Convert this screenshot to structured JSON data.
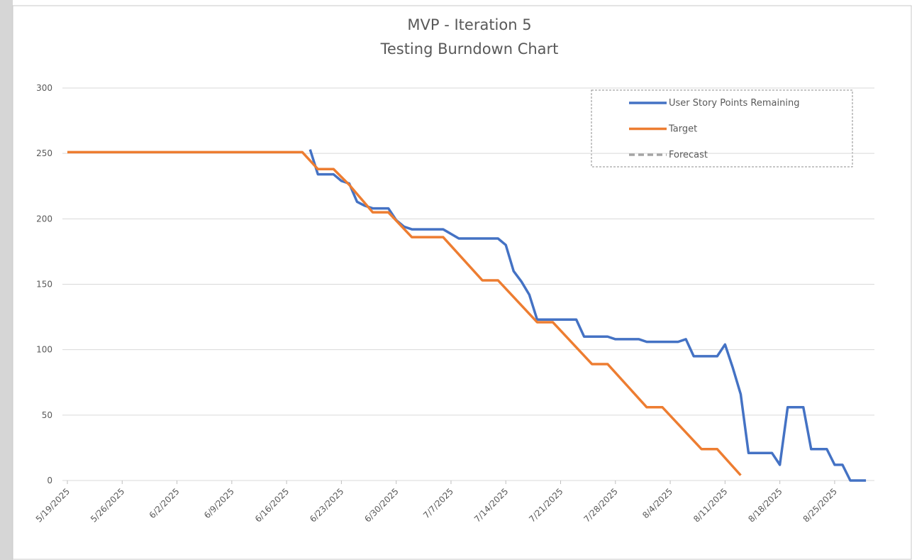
{
  "chart_data": {
    "type": "line",
    "title": "MVP - Iteration 5",
    "subtitle": "Testing Burndown Chart",
    "ylim": [
      0,
      300
    ],
    "yticks": [
      0,
      50,
      100,
      150,
      200,
      250,
      300
    ],
    "xlim": [
      "5/19/2025",
      "8/29/2025"
    ],
    "xticks": [
      "5/19/2025",
      "5/26/2025",
      "6/2/2025",
      "6/9/2025",
      "6/16/2025",
      "6/23/2025",
      "6/30/2025",
      "7/7/2025",
      "7/14/2025",
      "7/21/2025",
      "7/28/2025",
      "8/4/2025",
      "8/11/2025",
      "8/18/2025",
      "8/25/2025"
    ],
    "grid": true,
    "legend": "top-right",
    "series": [
      {
        "name": "User Story Points Remaining",
        "color": "#4472c4",
        "dash": false,
        "x": [
          "6/19/2025",
          "6/20/2025",
          "6/22/2025",
          "6/23/2025",
          "6/24/2025",
          "6/25/2025",
          "6/26/2025",
          "6/27/2025",
          "6/29/2025",
          "6/30/2025",
          "7/1/2025",
          "7/2/2025",
          "7/6/2025",
          "7/8/2025",
          "7/13/2025",
          "7/14/2025",
          "7/15/2025",
          "7/16/2025",
          "7/17/2025",
          "7/18/2025",
          "7/23/2025",
          "7/24/2025",
          "7/27/2025",
          "7/28/2025",
          "7/31/2025",
          "8/1/2025",
          "8/5/2025",
          "8/6/2025",
          "8/7/2025",
          "8/10/2025",
          "8/11/2025",
          "8/12/2025",
          "8/13/2025",
          "8/14/2025",
          "8/17/2025",
          "8/18/2025",
          "8/19/2025",
          "8/21/2025",
          "8/22/2025",
          "8/24/2025",
          "8/25/2025",
          "8/26/2025",
          "8/27/2025",
          "8/29/2025"
        ],
        "values": [
          253,
          234,
          234,
          229,
          227,
          213,
          210,
          208,
          208,
          199,
          194,
          192,
          192,
          185,
          185,
          180,
          160,
          152,
          142,
          123,
          123,
          110,
          110,
          108,
          108,
          106,
          106,
          108,
          95,
          95,
          104,
          86,
          66,
          21,
          21,
          12,
          56,
          56,
          24,
          24,
          12,
          12,
          0,
          0
        ]
      },
      {
        "name": "Target",
        "color": "#ed7d31",
        "dash": false,
        "x": [
          "5/19/2025",
          "6/18/2025",
          "6/20/2025",
          "6/22/2025",
          "6/24/2025",
          "6/27/2025",
          "6/29/2025",
          "7/2/2025",
          "7/6/2025",
          "7/11/2025",
          "7/13/2025",
          "7/18/2025",
          "7/20/2025",
          "7/25/2025",
          "7/27/2025",
          "8/1/2025",
          "8/3/2025",
          "8/8/2025",
          "8/10/2025",
          "8/13/2025"
        ],
        "values": [
          251,
          251,
          238,
          238,
          226,
          205,
          205,
          186,
          186,
          153,
          153,
          121,
          121,
          89,
          89,
          56,
          56,
          24,
          24,
          4
        ]
      },
      {
        "name": "Forecast",
        "color": "#a5a5a5",
        "dash": true,
        "x": [],
        "values": []
      }
    ]
  }
}
